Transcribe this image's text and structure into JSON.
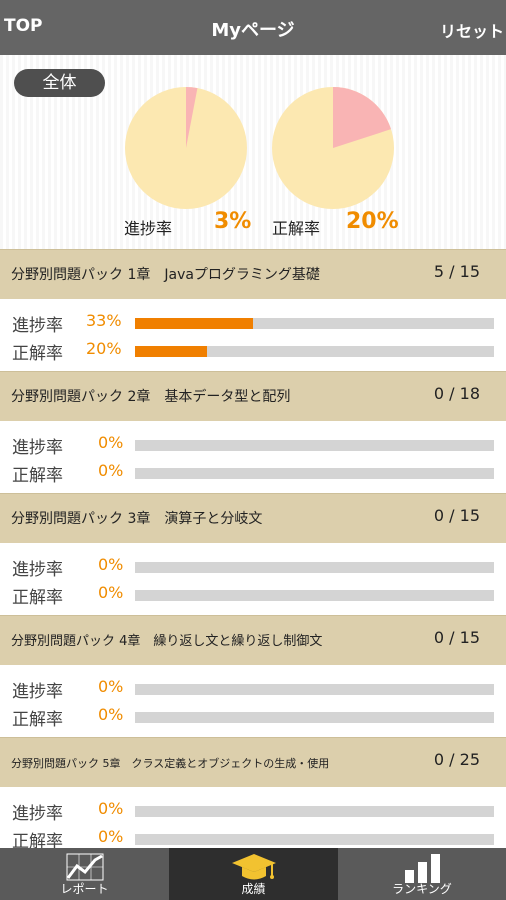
{
  "header": {
    "back_label": "TOP",
    "title": "Myページ",
    "reset_label": "リセット"
  },
  "summary": {
    "overall_label": "全体",
    "progress": {
      "label": "進捗率",
      "value": "3%",
      "percent": 3
    },
    "correct": {
      "label": "正解率",
      "value": "20%",
      "percent": 20
    },
    "colors": {
      "pie_base": "#fce8b1",
      "pie_fill": "#f9b4b4",
      "accent": "#f08c00"
    }
  },
  "chapters": [
    {
      "title": "分野別問題パック 1章　Javaプログラミング基礎",
      "count": "5 / 15",
      "progress": {
        "label": "進捗率",
        "value": "33%",
        "percent": 33
      },
      "correct": {
        "label": "正解率",
        "value": "20%",
        "percent": 20
      }
    },
    {
      "title": "分野別問題パック 2章　基本データ型と配列",
      "count": "0 / 18",
      "progress": {
        "label": "進捗率",
        "value": "0%",
        "percent": 0
      },
      "correct": {
        "label": "正解率",
        "value": "0%",
        "percent": 0
      }
    },
    {
      "title": "分野別問題パック 3章　演算子と分岐文",
      "count": "0 / 15",
      "progress": {
        "label": "進捗率",
        "value": "0%",
        "percent": 0
      },
      "correct": {
        "label": "正解率",
        "value": "0%",
        "percent": 0
      }
    },
    {
      "title": "分野別問題パック 4章　繰り返し文と繰り返し制御文",
      "count": "0 / 15",
      "progress": {
        "label": "進捗率",
        "value": "0%",
        "percent": 0
      },
      "correct": {
        "label": "正解率",
        "value": "0%",
        "percent": 0
      }
    },
    {
      "title": "分野別問題パック 5章　クラス定義とオブジェクトの生成・使用",
      "count": "0 / 25",
      "progress": {
        "label": "進捗率",
        "value": "0%",
        "percent": 0
      },
      "correct": {
        "label": "正解率",
        "value": "0%",
        "percent": 0
      }
    }
  ],
  "tabbar": {
    "tabs": [
      {
        "label": "レポート",
        "icon": "chart-line-icon"
      },
      {
        "label": "成績",
        "icon": "graduation-cap-icon",
        "active": true
      },
      {
        "label": "ランキング",
        "icon": "bar-chart-icon"
      }
    ]
  }
}
